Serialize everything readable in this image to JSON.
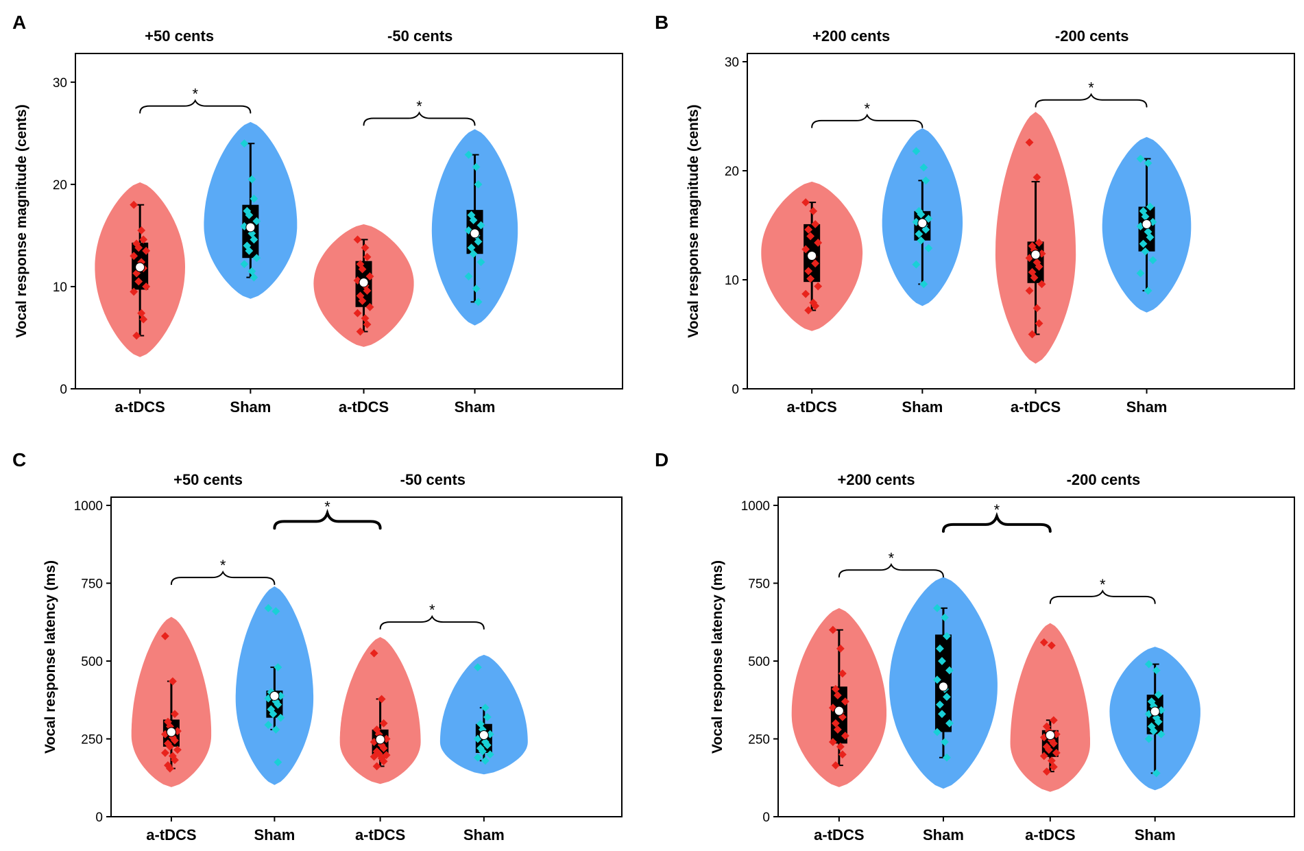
{
  "colors": {
    "atdcs": "#f4807c",
    "sham": "#5aaaf6",
    "atdcs_point": "#e8231c",
    "sham_point": "#19d0d6",
    "box": "#000000"
  },
  "chart_data": [
    {
      "panel": "A",
      "type": "violin",
      "ylabel": "Vocal response magnitude (cents)",
      "ylim": [
        0,
        32
      ],
      "yticks": [
        0,
        10,
        20,
        30
      ],
      "groups": [
        "+50 cents",
        "-50 cents"
      ],
      "categories": [
        "a-tDCS",
        "Sham",
        "a-tDCS",
        "Sham"
      ],
      "series": [
        {
          "name": "a-tDCS",
          "group": "+50 cents",
          "min": 5.2,
          "q1": 9.7,
          "median": 11.9,
          "mean": 11.9,
          "q3": 14.3,
          "max": 18.0,
          "vmin": 3.1,
          "vmax": 20.2,
          "points": [
            18.0,
            15.5,
            14.6,
            14.2,
            13.8,
            13.5,
            13.0,
            12.4,
            11.8,
            11.3,
            10.5,
            10.0,
            9.5,
            7.4,
            6.8,
            5.2
          ]
        },
        {
          "name": "Sham",
          "group": "+50 cents",
          "min": 10.9,
          "q1": 12.8,
          "median": 16.0,
          "mean": 15.8,
          "q3": 18.0,
          "max": 24.0,
          "vmin": 8.8,
          "vmax": 26.1,
          "points": [
            24.0,
            20.5,
            18.6,
            17.4,
            17.0,
            16.4,
            15.9,
            15.2,
            14.6,
            14.0,
            13.5,
            12.8,
            12.2,
            11.5,
            10.9
          ]
        },
        {
          "name": "a-tDCS",
          "group": "-50 cents",
          "min": 5.6,
          "q1": 8.0,
          "median": 10.3,
          "mean": 10.4,
          "q3": 12.5,
          "max": 14.6,
          "vmin": 4.1,
          "vmax": 16.1,
          "points": [
            14.6,
            13.8,
            12.9,
            12.2,
            11.7,
            11.0,
            10.6,
            10.1,
            9.6,
            9.1,
            8.6,
            8.0,
            7.4,
            6.9,
            6.3,
            5.6
          ]
        },
        {
          "name": "Sham",
          "group": "-50 cents",
          "min": 8.5,
          "q1": 13.2,
          "median": 15.5,
          "mean": 15.2,
          "q3": 17.5,
          "max": 22.9,
          "vmin": 6.2,
          "vmax": 25.4,
          "points": [
            22.9,
            21.7,
            20.0,
            17.0,
            16.5,
            16.0,
            15.5,
            15.0,
            14.4,
            13.8,
            13.2,
            12.4,
            11.0,
            9.8,
            8.5
          ]
        }
      ],
      "annotations": [
        {
          "from": 0,
          "to": 1,
          "label": "*",
          "value": 28.2,
          "heavy": false
        },
        {
          "from": 2,
          "to": 3,
          "label": "*",
          "value": 27.0,
          "heavy": false
        }
      ]
    },
    {
      "panel": "B",
      "type": "violin",
      "ylabel": "Vocal response magnitude (cents)",
      "ylim": [
        0,
        30
      ],
      "yticks": [
        0,
        10,
        20,
        30
      ],
      "groups": [
        "+200 cents",
        "-200 cents"
      ],
      "categories": [
        "a-tDCS",
        "Sham",
        "a-tDCS",
        "Sham"
      ],
      "series": [
        {
          "name": "a-tDCS",
          "group": "+200 cents",
          "min": 7.2,
          "q1": 9.8,
          "median": 12.5,
          "mean": 12.2,
          "q3": 15.1,
          "max": 17.1,
          "vmin": 5.3,
          "vmax": 19.0,
          "points": [
            17.1,
            16.3,
            15.1,
            14.6,
            14.0,
            13.4,
            12.8,
            12.1,
            11.5,
            10.8,
            10.1,
            9.4,
            8.7,
            7.9,
            7.6,
            7.2
          ]
        },
        {
          "name": "Sham",
          "group": "+200 cents",
          "min": 9.6,
          "q1": 13.6,
          "median": 15.2,
          "mean": 15.2,
          "q3": 16.3,
          "max": 19.1,
          "vmin": 7.6,
          "vmax": 23.9,
          "points": [
            21.8,
            20.3,
            19.1,
            16.3,
            16.0,
            15.6,
            15.3,
            15.0,
            14.6,
            14.2,
            13.6,
            12.9,
            11.4,
            9.6
          ]
        },
        {
          "name": "a-tDCS",
          "group": "-200 cents",
          "min": 5.0,
          "q1": 9.7,
          "median": 12.4,
          "mean": 12.3,
          "q3": 13.5,
          "max": 19.0,
          "vmin": 2.3,
          "vmax": 25.4,
          "points": [
            22.6,
            19.4,
            13.4,
            13.1,
            12.7,
            12.4,
            12.0,
            11.6,
            11.2,
            10.7,
            10.2,
            9.6,
            9.0,
            7.4,
            6.0,
            5.0
          ]
        },
        {
          "name": "Sham",
          "group": "-200 cents",
          "min": 9.0,
          "q1": 12.6,
          "median": 14.9,
          "mean": 15.1,
          "q3": 16.7,
          "max": 21.1,
          "vmin": 7.0,
          "vmax": 23.1,
          "points": [
            21.1,
            20.7,
            16.7,
            16.3,
            15.8,
            15.3,
            14.9,
            14.4,
            13.9,
            13.3,
            12.6,
            11.8,
            10.6,
            9.0
          ]
        }
      ],
      "annotations": [
        {
          "from": 0,
          "to": 1,
          "label": "*",
          "value": 25.1,
          "heavy": false
        },
        {
          "from": 2,
          "to": 3,
          "label": "*",
          "value": 27.0,
          "heavy": false
        }
      ]
    },
    {
      "panel": "C",
      "type": "violin",
      "ylabel": "Vocal response latency (ms)",
      "ylim": [
        0,
        1000
      ],
      "yticks": [
        0,
        250,
        500,
        750,
        1000
      ],
      "groups": [
        "+50 cents",
        "-50 cents"
      ],
      "categories": [
        "a-tDCS",
        "Sham",
        "a-tDCS",
        "Sham"
      ],
      "series": [
        {
          "name": "a-tDCS",
          "group": "+50 cents",
          "min": 155,
          "q1": 225,
          "median": 262,
          "mean": 272,
          "q3": 312,
          "max": 435,
          "vmin": 95,
          "vmax": 642,
          "points": [
            580,
            435,
            330,
            305,
            290,
            275,
            265,
            255,
            245,
            235,
            225,
            215,
            205,
            195,
            182,
            165,
            155
          ]
        },
        {
          "name": "Sham",
          "group": "+50 cents",
          "min": 280,
          "q1": 318,
          "median": 380,
          "mean": 388,
          "q3": 405,
          "max": 480,
          "vmin": 102,
          "vmax": 740,
          "points": [
            670,
            660,
            480,
            400,
            395,
            388,
            380,
            370,
            360,
            345,
            330,
            318,
            295,
            280,
            175
          ]
        },
        {
          "name": "a-tDCS",
          "group": "-50 cents",
          "min": 162,
          "q1": 200,
          "median": 240,
          "mean": 248,
          "q3": 280,
          "max": 378,
          "vmin": 105,
          "vmax": 577,
          "points": [
            525,
            378,
            300,
            280,
            265,
            250,
            240,
            230,
            220,
            210,
            203,
            198,
            193,
            188,
            178,
            162
          ]
        },
        {
          "name": "Sham",
          "group": "-50 cents",
          "min": 180,
          "q1": 205,
          "median": 240,
          "mean": 262,
          "q3": 298,
          "max": 350,
          "vmin": 136,
          "vmax": 520,
          "points": [
            480,
            350,
            320,
            298,
            280,
            265,
            250,
            240,
            230,
            220,
            210,
            200,
            190,
            180
          ]
        }
      ],
      "annotations": [
        {
          "from": 0,
          "to": 1,
          "label": "*",
          "value": 786,
          "heavy": false
        },
        {
          "from": 2,
          "to": 3,
          "label": "*",
          "value": 643,
          "heavy": false
        },
        {
          "from": 1,
          "to": 2,
          "label": "*",
          "value": 975,
          "heavy": true
        }
      ]
    },
    {
      "panel": "D",
      "type": "violin",
      "ylabel": "Vocal response latency (ms)",
      "ylim": [
        0,
        1000
      ],
      "yticks": [
        0,
        250,
        500,
        750,
        1000
      ],
      "groups": [
        "+200 cents",
        "-200 cents"
      ],
      "categories": [
        "a-tDCS",
        "Sham",
        "a-tDCS",
        "Sham"
      ],
      "series": [
        {
          "name": "a-tDCS",
          "group": "+200 cents",
          "min": 165,
          "q1": 235,
          "median": 330,
          "mean": 340,
          "q3": 418,
          "max": 600,
          "vmin": 95,
          "vmax": 670,
          "points": [
            600,
            540,
            460,
            410,
            390,
            370,
            350,
            335,
            320,
            300,
            280,
            260,
            240,
            225,
            200,
            165
          ]
        },
        {
          "name": "Sham",
          "group": "+200 cents",
          "min": 190,
          "q1": 272,
          "median": 420,
          "mean": 418,
          "q3": 585,
          "max": 670,
          "vmin": 90,
          "vmax": 770,
          "points": [
            670,
            640,
            580,
            540,
            500,
            470,
            440,
            410,
            385,
            360,
            330,
            300,
            272,
            240,
            190
          ]
        },
        {
          "name": "a-tDCS",
          "group": "-200 cents",
          "min": 145,
          "q1": 192,
          "median": 235,
          "mean": 262,
          "q3": 278,
          "max": 310,
          "vmin": 80,
          "vmax": 622,
          "points": [
            560,
            550,
            310,
            290,
            275,
            265,
            255,
            245,
            235,
            225,
            215,
            205,
            195,
            180,
            160,
            145
          ]
        },
        {
          "name": "Sham",
          "group": "-200 cents",
          "min": 140,
          "q1": 265,
          "median": 338,
          "mean": 338,
          "q3": 392,
          "max": 490,
          "vmin": 85,
          "vmax": 546,
          "points": [
            490,
            470,
            392,
            370,
            355,
            342,
            330,
            318,
            305,
            290,
            275,
            265,
            250,
            140
          ]
        }
      ],
      "annotations": [
        {
          "from": 0,
          "to": 1,
          "label": "*",
          "value": 810,
          "heavy": false
        },
        {
          "from": 2,
          "to": 3,
          "label": "*",
          "value": 725,
          "heavy": false
        },
        {
          "from": 1,
          "to": 2,
          "label": "*",
          "value": 965,
          "heavy": true
        }
      ]
    }
  ]
}
